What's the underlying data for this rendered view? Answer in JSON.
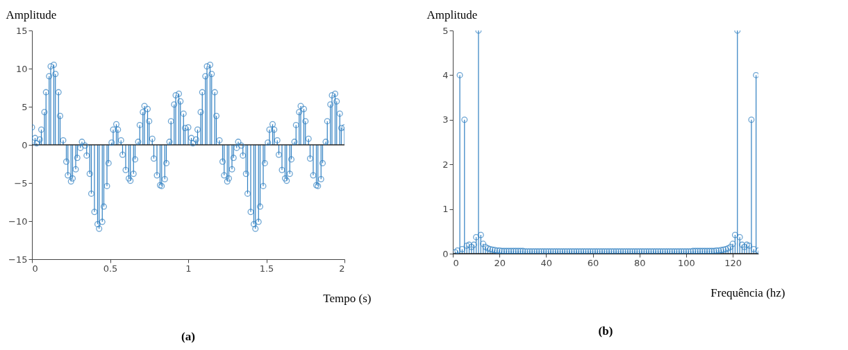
{
  "chart_data": [
    {
      "type": "lollipop",
      "xlabel": "Tempo (s)",
      "ylabel": "Amplitude",
      "annotations": [
        "(a)"
      ],
      "marker": "circle",
      "grid": false,
      "xlim": [
        0,
        2
      ],
      "xticks": [
        0,
        0.5,
        1,
        1.5,
        2
      ],
      "ylim": [
        -15,
        15
      ],
      "yticks": [
        -15,
        -10,
        -5,
        0,
        5,
        10,
        15
      ],
      "ref_lines": [
        {
          "axis": "y",
          "value": 0,
          "color": "#262626"
        }
      ],
      "series": [
        {
          "color": "#2f7fc1",
          "x": [
            0,
            0.02,
            0.03,
            0.05,
            0.06,
            0.08,
            0.09,
            0.11,
            0.12,
            0.14,
            0.15,
            0.17,
            0.18,
            0.2,
            0.22,
            0.23,
            0.25,
            0.26,
            0.28,
            0.29,
            0.31,
            0.32,
            0.34,
            0.35,
            0.37,
            0.38,
            0.4,
            0.42,
            0.43,
            0.45,
            0.46,
            0.48,
            0.49,
            0.51,
            0.52,
            0.54,
            0.55,
            0.57,
            0.58,
            0.6,
            0.62,
            0.63,
            0.65,
            0.66,
            0.68,
            0.69,
            0.71,
            0.72,
            0.74,
            0.75,
            0.77,
            0.78,
            0.8,
            0.82,
            0.83,
            0.85,
            0.86,
            0.88,
            0.89,
            0.91,
            0.92,
            0.94,
            0.95,
            0.97,
            0.98,
            1,
            1.02,
            1.03,
            1.05,
            1.06,
            1.08,
            1.09,
            1.11,
            1.12,
            1.14,
            1.15,
            1.17,
            1.18,
            1.2,
            1.22,
            1.23,
            1.25,
            1.26,
            1.28,
            1.29,
            1.31,
            1.32,
            1.34,
            1.35,
            1.37,
            1.38,
            1.4,
            1.42,
            1.43,
            1.45,
            1.46,
            1.48,
            1.49,
            1.51,
            1.52,
            1.54,
            1.55,
            1.57,
            1.58,
            1.6,
            1.62,
            1.63,
            1.65,
            1.66,
            1.68,
            1.69,
            1.71,
            1.72,
            1.74,
            1.75,
            1.77,
            1.78,
            1.8,
            1.82,
            1.83,
            1.85,
            1.86,
            1.88,
            1.89,
            1.91,
            1.92,
            1.94,
            1.95,
            1.97,
            1.98,
            2
          ],
          "values": [
            2.3,
            0.9,
            0.2,
            0.7,
            2.0,
            4.3,
            6.9,
            9.0,
            10.3,
            10.5,
            9.3,
            6.9,
            3.8,
            0.6,
            -2.2,
            -4.0,
            -4.8,
            -4.4,
            -3.2,
            -1.7,
            -0.4,
            0.4,
            -0.1,
            -1.4,
            -3.8,
            -6.4,
            -8.8,
            -10.4,
            -11.0,
            -10.1,
            -8.1,
            -5.4,
            -2.4,
            0.3,
            2.0,
            2.7,
            2.0,
            0.6,
            -1.3,
            -3.3,
            -4.4,
            -4.7,
            -3.8,
            -1.9,
            0.4,
            2.6,
            4.3,
            5.1,
            4.7,
            3.1,
            0.8,
            -1.8,
            -4.0,
            -5.3,
            -5.4,
            -4.5,
            -2.4,
            0.4,
            3.1,
            5.3,
            6.5,
            6.7,
            5.7,
            4.1,
            2.2,
            2.3,
            0.9,
            0.2,
            0.7,
            2.0,
            4.3,
            6.9,
            9.0,
            10.3,
            10.5,
            9.3,
            6.9,
            3.8,
            0.6,
            -2.2,
            -4.0,
            -4.8,
            -4.4,
            -3.2,
            -1.7,
            -0.4,
            0.4,
            -0.1,
            -1.4,
            -3.8,
            -6.4,
            -8.8,
            -10.4,
            -11.0,
            -10.1,
            -8.1,
            -5.4,
            -2.4,
            0.3,
            2.0,
            2.7,
            2.0,
            0.6,
            -1.3,
            -3.3,
            -4.4,
            -4.7,
            -3.8,
            -1.9,
            0.4,
            2.6,
            4.3,
            5.1,
            4.7,
            3.1,
            0.8,
            -1.8,
            -4.0,
            -5.3,
            -5.4,
            -4.5,
            -2.4,
            0.4,
            3.1,
            5.3,
            6.5,
            6.7,
            5.7,
            4.1,
            2.2,
            2.3
          ]
        }
      ]
    },
    {
      "type": "lollipop",
      "xlabel": "Frequência (hz)",
      "ylabel": "Amplitude",
      "annotations": [
        "(b)"
      ],
      "marker": "circle",
      "grid": false,
      "xlim": [
        0,
        131
      ],
      "xticks": [
        0,
        20,
        40,
        60,
        80,
        100,
        120
      ],
      "ylim": [
        0,
        5
      ],
      "yticks": [
        0,
        1,
        2,
        3,
        4,
        5
      ],
      "ref_lines": [
        {
          "axis": "y",
          "value": 0,
          "color": "#262626"
        }
      ],
      "series": [
        {
          "color": "#2f7fc1",
          "x": [
            1,
            2,
            3,
            4,
            5,
            6,
            7,
            8,
            9,
            10,
            11,
            12,
            13,
            14,
            15,
            16,
            17,
            18,
            19,
            20,
            21,
            22,
            23,
            24,
            25,
            26,
            27,
            28,
            29,
            30,
            31,
            32,
            33,
            34,
            35,
            36,
            37,
            38,
            39,
            40,
            41,
            42,
            43,
            44,
            45,
            46,
            47,
            48,
            49,
            50,
            51,
            52,
            53,
            54,
            55,
            56,
            57,
            58,
            59,
            60,
            61,
            62,
            63,
            64,
            65,
            66,
            67,
            68,
            69,
            70,
            71,
            72,
            73,
            74,
            75,
            76,
            77,
            78,
            79,
            80,
            81,
            82,
            83,
            84,
            85,
            86,
            87,
            88,
            89,
            90,
            91,
            92,
            93,
            94,
            95,
            96,
            97,
            98,
            99,
            100,
            101,
            102,
            103,
            104,
            105,
            106,
            107,
            108,
            109,
            110,
            111,
            112,
            113,
            114,
            115,
            116,
            117,
            118,
            119,
            120,
            121,
            122,
            123,
            124,
            125,
            126,
            127,
            128,
            129,
            130,
            131
          ],
          "values": [
            0.03,
            0.07,
            4.0,
            0.1,
            3.0,
            0.18,
            0.2,
            0.15,
            0.2,
            0.37,
            5.0,
            0.42,
            0.22,
            0.15,
            0.12,
            0.1,
            0.09,
            0.08,
            0.07,
            0.07,
            0.06,
            0.06,
            0.06,
            0.06,
            0.06,
            0.06,
            0.06,
            0.06,
            0.06,
            0.06,
            0.05,
            0.05,
            0.05,
            0.05,
            0.05,
            0.05,
            0.05,
            0.05,
            0.05,
            0.05,
            0.05,
            0.05,
            0.05,
            0.05,
            0.05,
            0.05,
            0.05,
            0.05,
            0.05,
            0.05,
            0.05,
            0.05,
            0.05,
            0.05,
            0.05,
            0.05,
            0.05,
            0.05,
            0.05,
            0.05,
            0.05,
            0.05,
            0.05,
            0.05,
            0.05,
            0.05,
            0.05,
            0.05,
            0.05,
            0.05,
            0.05,
            0.05,
            0.05,
            0.05,
            0.05,
            0.05,
            0.05,
            0.05,
            0.05,
            0.05,
            0.05,
            0.05,
            0.05,
            0.05,
            0.05,
            0.05,
            0.05,
            0.05,
            0.05,
            0.05,
            0.05,
            0.05,
            0.05,
            0.05,
            0.05,
            0.05,
            0.05,
            0.05,
            0.05,
            0.05,
            0.05,
            0.05,
            0.06,
            0.06,
            0.06,
            0.06,
            0.06,
            0.06,
            0.06,
            0.06,
            0.06,
            0.06,
            0.07,
            0.07,
            0.08,
            0.09,
            0.1,
            0.12,
            0.15,
            0.22,
            0.42,
            5.0,
            0.37,
            0.2,
            0.15,
            0.2,
            0.18,
            3.0,
            0.1,
            4.0,
            0.07
          ]
        }
      ]
    }
  ]
}
